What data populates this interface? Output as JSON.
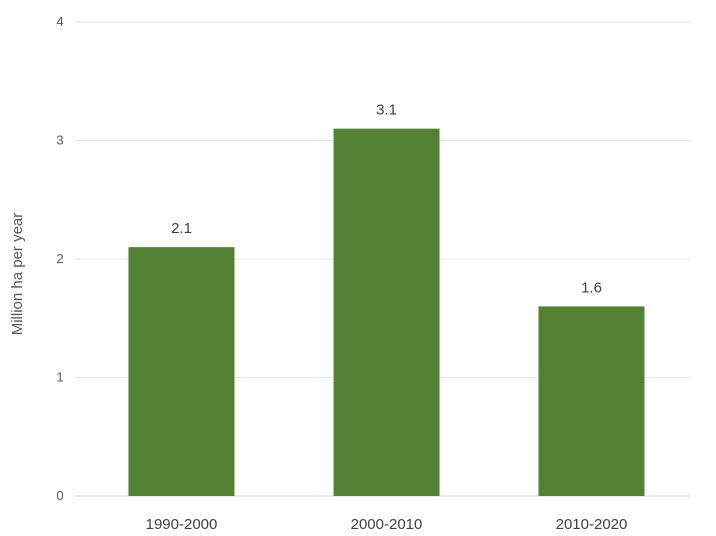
{
  "chart_data": {
    "type": "bar",
    "categories": [
      "1990-2000",
      "2000-2010",
      "2010-2020"
    ],
    "values": [
      2.1,
      3.1,
      1.6
    ],
    "value_labels": [
      "2.1",
      "3.1",
      "1.6"
    ],
    "title": "",
    "xlabel": "",
    "ylabel": "Million ha per year",
    "ylim": [
      0,
      4
    ],
    "yticks": [
      "0",
      "1",
      "2",
      "3",
      "4"
    ],
    "grid": true,
    "bar_color": "#548235"
  }
}
